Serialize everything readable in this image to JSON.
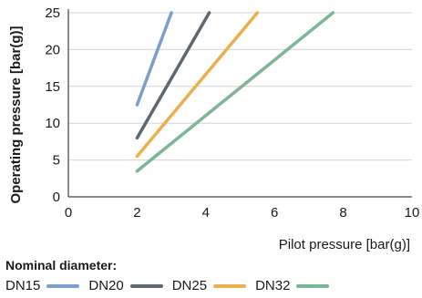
{
  "chart_data": {
    "type": "line",
    "xlabel": "Pilot pressure [bar(g)]",
    "ylabel": "Operating pressure [bar(g)]",
    "xlim": [
      0,
      10
    ],
    "ylim": [
      0,
      25
    ],
    "xticks": [
      "0",
      "2",
      "4",
      "6",
      "8",
      "10"
    ],
    "yticks": [
      "0",
      "5",
      "10",
      "15",
      "20",
      "25"
    ],
    "grid": "horizontal",
    "legend_title": "Nominal diameter:",
    "legend_placement": "bottom",
    "series": [
      {
        "name": "DN15",
        "color": "#7c9fc9",
        "points": [
          [
            2.0,
            12.5
          ],
          [
            3.0,
            25
          ]
        ]
      },
      {
        "name": "DN20",
        "color": "#5d6870",
        "points": [
          [
            2.0,
            8.0
          ],
          [
            4.1,
            25
          ]
        ]
      },
      {
        "name": "DN25",
        "color": "#eab04d",
        "points": [
          [
            2.0,
            5.5
          ],
          [
            5.5,
            25
          ]
        ]
      },
      {
        "name": "DN32",
        "color": "#7db597",
        "points": [
          [
            2.0,
            3.5
          ],
          [
            7.7,
            25
          ]
        ]
      }
    ]
  }
}
